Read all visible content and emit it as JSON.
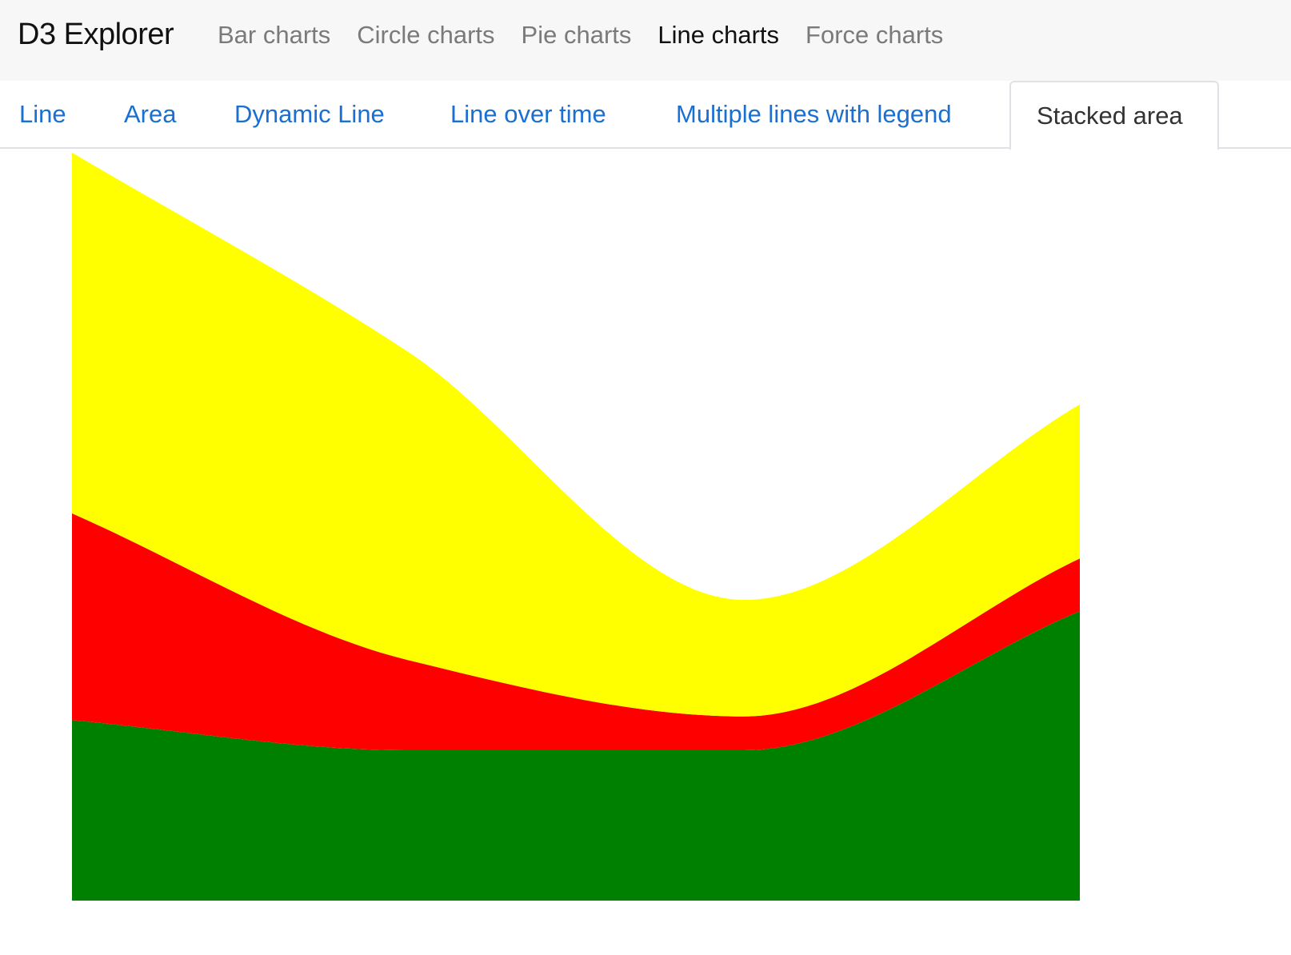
{
  "navbar": {
    "brand": "D3 Explorer",
    "links": [
      {
        "label": "Bar charts",
        "active": false
      },
      {
        "label": "Circle charts",
        "active": false
      },
      {
        "label": "Pie charts",
        "active": false
      },
      {
        "label": "Line charts",
        "active": true
      },
      {
        "label": "Force charts",
        "active": false
      }
    ]
  },
  "tabs": [
    {
      "label": "Line",
      "active": false
    },
    {
      "label": "Area",
      "active": false
    },
    {
      "label": "Dynamic Line",
      "active": false
    },
    {
      "label": "Line over time",
      "active": false
    },
    {
      "label": "Multiple lines with legend",
      "active": false
    },
    {
      "label": "Stacked area",
      "active": true
    }
  ],
  "colors": {
    "accent_link": "#1a6fd0",
    "nav_bg": "#f7f7f7"
  },
  "chart_data": {
    "type": "area",
    "stacked": true,
    "x": [
      0,
      1,
      2,
      3
    ],
    "ylim": [
      0,
      100
    ],
    "grid": false,
    "series": [
      {
        "color": "#008000",
        "values": [
          24,
          20,
          20,
          38.5
        ]
      },
      {
        "color": "#ff0000",
        "values": [
          27.5,
          12,
          4.5,
          7
        ]
      },
      {
        "color": "#ffff00",
        "values": [
          48,
          41,
          15.5,
          20.5
        ]
      }
    ]
  }
}
